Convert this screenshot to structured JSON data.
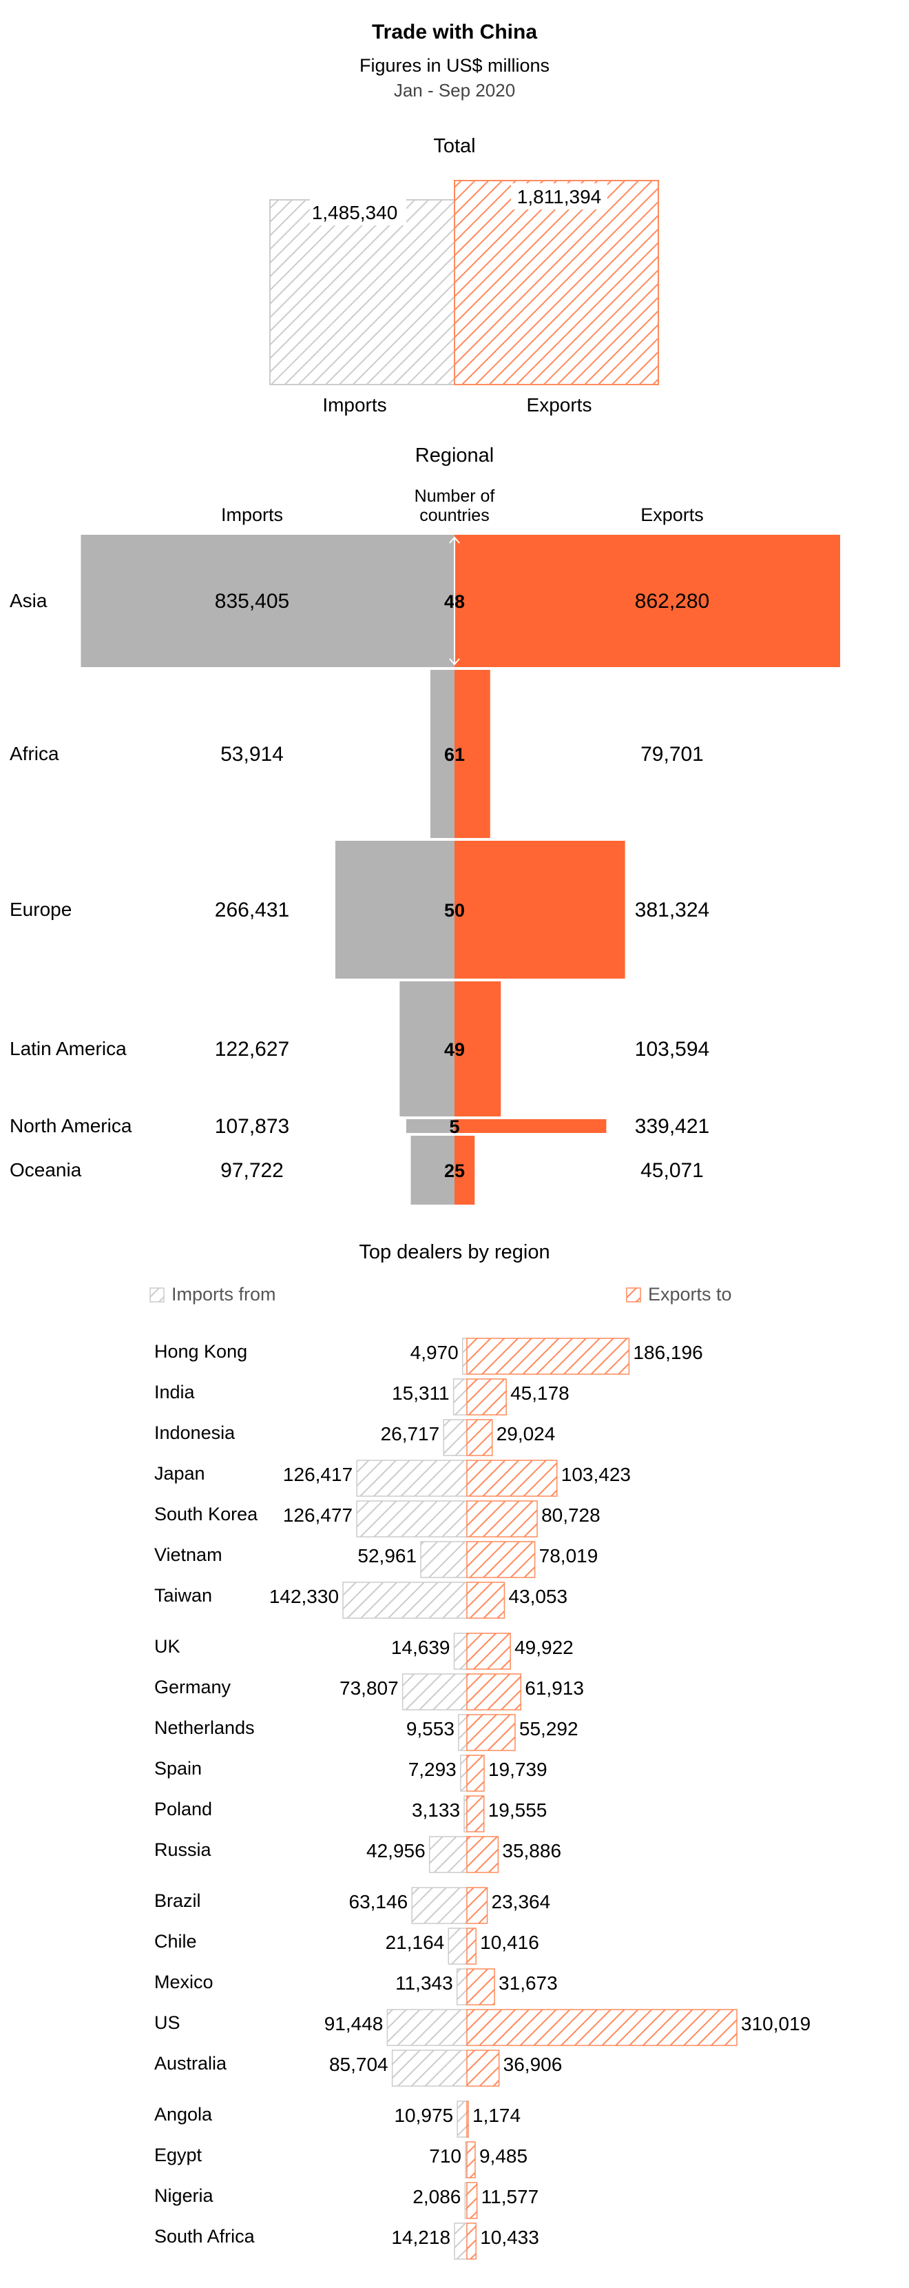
{
  "title": "Trade with China",
  "subtitle": "Figures in US$ millions",
  "period": "Jan - Sep 2020",
  "colors": {
    "imports": "#b3b3b3",
    "exports": "#ff6633",
    "imports_hatch": "#cccccc",
    "exports_hatch": "#ff8a5c"
  },
  "chart_data": [
    {
      "type": "bar",
      "title": "Total",
      "categories": [
        "Imports",
        "Exports"
      ],
      "values": [
        1485340,
        1811394
      ],
      "value_labels": [
        "1,485,340",
        "1,811,394"
      ]
    },
    {
      "type": "bar",
      "title": "Regional",
      "headers": {
        "imports": "Imports",
        "countries": "Number of countries",
        "exports": "Exports"
      },
      "regions": [
        {
          "name": "Asia",
          "imports": 835405,
          "imports_label": "835,405",
          "exports": 862280,
          "exports_label": "862,280",
          "countries": 48
        },
        {
          "name": "Africa",
          "imports": 53914,
          "imports_label": "53,914",
          "exports": 79701,
          "exports_label": "79,701",
          "countries": 61
        },
        {
          "name": "Europe",
          "imports": 266431,
          "imports_label": "266,431",
          "exports": 381324,
          "exports_label": "381,324",
          "countries": 50
        },
        {
          "name": "Latin America",
          "imports": 122627,
          "imports_label": "122,627",
          "exports": 103594,
          "exports_label": "103,594",
          "countries": 49
        },
        {
          "name": "North America",
          "imports": 107873,
          "imports_label": "107,873",
          "exports": 339421,
          "exports_label": "339,421",
          "countries": 5
        },
        {
          "name": "Oceania",
          "imports": 97722,
          "imports_label": "97,722",
          "exports": 45071,
          "exports_label": "45,071",
          "countries": 25
        }
      ]
    },
    {
      "type": "bar",
      "title": "Top dealers by region",
      "legend": {
        "imports": "Imports from",
        "exports": "Exports to"
      },
      "groups": [
        [
          {
            "name": "Hong Kong",
            "imports": 4970,
            "imports_label": "4,970",
            "exports": 186196,
            "exports_label": "186,196"
          },
          {
            "name": "India",
            "imports": 15311,
            "imports_label": "15,311",
            "exports": 45178,
            "exports_label": "45,178"
          },
          {
            "name": "Indonesia",
            "imports": 26717,
            "imports_label": "26,717",
            "exports": 29024,
            "exports_label": "29,024"
          },
          {
            "name": "Japan",
            "imports": 126417,
            "imports_label": "126,417",
            "exports": 103423,
            "exports_label": "103,423"
          },
          {
            "name": "South Korea",
            "imports": 126477,
            "imports_label": "126,477",
            "exports": 80728,
            "exports_label": "80,728"
          },
          {
            "name": "Vietnam",
            "imports": 52961,
            "imports_label": "52,961",
            "exports": 78019,
            "exports_label": "78,019"
          },
          {
            "name": "Taiwan",
            "imports": 142330,
            "imports_label": "142,330",
            "exports": 43053,
            "exports_label": "43,053"
          }
        ],
        [
          {
            "name": "UK",
            "imports": 14639,
            "imports_label": "14,639",
            "exports": 49922,
            "exports_label": "49,922"
          },
          {
            "name": "Germany",
            "imports": 73807,
            "imports_label": "73,807",
            "exports": 61913,
            "exports_label": "61,913"
          },
          {
            "name": "Netherlands",
            "imports": 9553,
            "imports_label": "9,553",
            "exports": 55292,
            "exports_label": "55,292"
          },
          {
            "name": "Spain",
            "imports": 7293,
            "imports_label": "7,293",
            "exports": 19739,
            "exports_label": "19,739"
          },
          {
            "name": "Poland",
            "imports": 3133,
            "imports_label": "3,133",
            "exports": 19555,
            "exports_label": "19,555"
          },
          {
            "name": "Russia",
            "imports": 42956,
            "imports_label": "42,956",
            "exports": 35886,
            "exports_label": "35,886"
          }
        ],
        [
          {
            "name": "Brazil",
            "imports": 63146,
            "imports_label": "63,146",
            "exports": 23364,
            "exports_label": "23,364"
          },
          {
            "name": "Chile",
            "imports": 21164,
            "imports_label": "21,164",
            "exports": 10416,
            "exports_label": "10,416"
          },
          {
            "name": "Mexico",
            "imports": 11343,
            "imports_label": "11,343",
            "exports": 31673,
            "exports_label": "31,673"
          },
          {
            "name": "US",
            "imports": 91448,
            "imports_label": "91,448",
            "exports": 310019,
            "exports_label": "310,019"
          },
          {
            "name": "Australia",
            "imports": 85704,
            "imports_label": "85,704",
            "exports": 36906,
            "exports_label": "36,906"
          }
        ],
        [
          {
            "name": "Angola",
            "imports": 10975,
            "imports_label": "10,975",
            "exports": 1174,
            "exports_label": "1,174"
          },
          {
            "name": "Egypt",
            "imports": 710,
            "imports_label": "710",
            "exports": 9485,
            "exports_label": "9,485"
          },
          {
            "name": "Nigeria",
            "imports": 2086,
            "imports_label": "2,086",
            "exports": 11577,
            "exports_label": "11,577"
          },
          {
            "name": "South Africa",
            "imports": 14218,
            "imports_label": "14,218",
            "exports": 10433,
            "exports_label": "10,433"
          }
        ]
      ]
    }
  ]
}
